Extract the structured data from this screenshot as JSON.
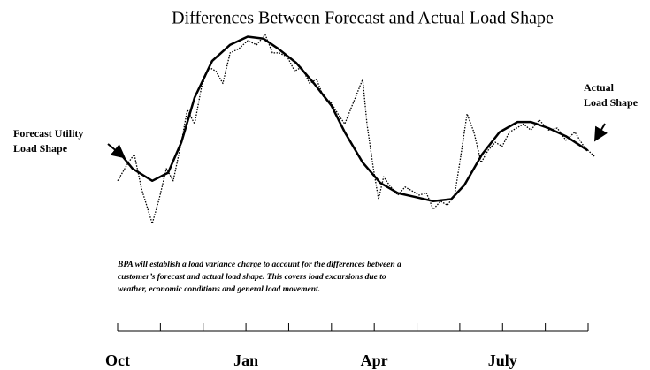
{
  "chart_data": {
    "type": "line",
    "title": "Differences Between Forecast and Actual Load Shape",
    "categories": [
      "Oct",
      null,
      null,
      "Jan",
      null,
      null,
      "Apr",
      null,
      null,
      "July",
      null,
      null
    ],
    "xlim": [
      0,
      11
    ],
    "ylim": [
      0,
      100
    ],
    "series": [
      {
        "color": "#000000",
        "line_style": "solid",
        "x": [
          0,
          0.35,
          0.81,
          1.18,
          1.49,
          1.8,
          2.21,
          2.63,
          3.04,
          3.41,
          3.76,
          4.18,
          4.59,
          5.0,
          5.31,
          5.73,
          6.14,
          6.55,
          6.97,
          7.38,
          7.8,
          8.11,
          8.52,
          8.93,
          9.35,
          9.66,
          10.07,
          10.48,
          10.99
        ],
        "values": [
          39,
          30,
          24,
          28,
          43,
          65,
          83,
          91,
          95,
          94,
          89,
          82,
          72,
          61,
          48,
          33,
          23,
          18,
          16,
          14,
          15,
          22,
          37,
          48,
          53,
          53,
          50,
          46,
          39
        ]
      },
      {
        "color": "#000000",
        "line_style": "dotted",
        "x": [
          0,
          0.25,
          0.39,
          0.56,
          0.81,
          0.97,
          1.14,
          1.3,
          1.49,
          1.63,
          1.8,
          1.96,
          2.13,
          2.3,
          2.46,
          2.63,
          2.83,
          3.04,
          3.25,
          3.45,
          3.62,
          3.78,
          3.97,
          4.14,
          4.3,
          4.49,
          4.65,
          4.82,
          4.98,
          5.15,
          5.31,
          5.52,
          5.73,
          5.83,
          5.98,
          6.1,
          6.22,
          6.35,
          6.55,
          6.72,
          6.89,
          7.05,
          7.22,
          7.38,
          7.55,
          7.71,
          7.88,
          8.0,
          8.17,
          8.33,
          8.5,
          8.66,
          8.83,
          8.99,
          9.16,
          9.33,
          9.49,
          9.66,
          9.86,
          10.07,
          10.28,
          10.48,
          10.69,
          10.9,
          11.15
        ],
        "values": [
          24,
          33,
          37,
          20,
          3,
          15,
          30,
          24,
          43,
          59,
          52,
          70,
          80,
          78,
          72,
          87,
          89,
          93,
          91,
          96,
          87,
          87,
          85,
          78,
          80,
          72,
          74,
          65,
          63,
          57,
          52,
          63,
          74,
          52,
          30,
          15,
          26,
          22,
          17,
          21,
          19,
          17,
          18,
          10,
          14,
          12,
          17,
          33,
          57,
          48,
          33,
          39,
          43,
          41,
          48,
          50,
          52,
          49,
          54,
          49,
          50,
          44,
          48,
          41,
          36
        ]
      }
    ],
    "annotations": [
      {
        "lines": [
          "Forecast Utility",
          "Load Shape"
        ]
      },
      {
        "lines": [
          "Actual",
          "Load Shape"
        ]
      }
    ],
    "note": [
      "BPA will establish  a load variance charge to account for the differences between a",
      "customer’s forecast and actual load shape.  This covers load excursions due to",
      "weather, economic conditions and general load movement."
    ]
  }
}
